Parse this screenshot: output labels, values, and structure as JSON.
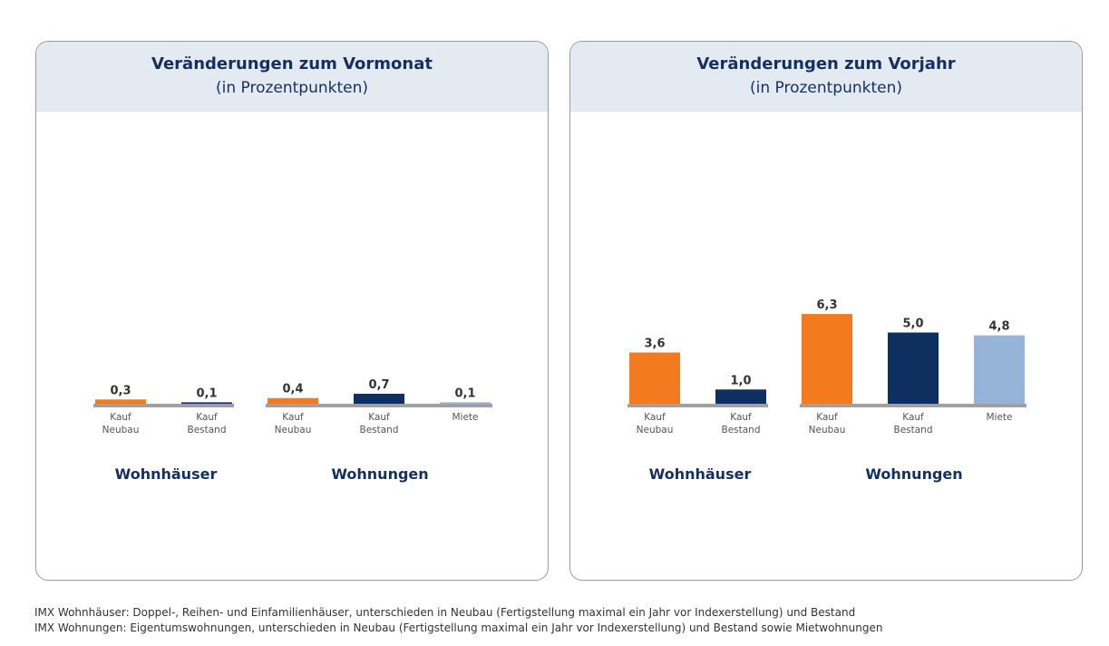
{
  "colors": {
    "kauf_neubau": "#f47a20",
    "kauf_bestand": "#0e3060",
    "miete": "#96b3d8",
    "baseline": "#a0a0a0",
    "text": "#15305f",
    "label_text": "#555555"
  },
  "chart_data": [
    {
      "type": "bar",
      "title": "Veränderungen zum Vormonat",
      "subtitle": "(in Prozentpunkten)",
      "groups": [
        {
          "name": "Wohnhäuser",
          "bars": [
            {
              "label": [
                "Kauf",
                "Neubau"
              ],
              "value": 0.3,
              "value_label": "0,3",
              "color_key": "kauf_neubau"
            },
            {
              "label": [
                "Kauf",
                "Bestand"
              ],
              "value": 0.1,
              "value_label": "0,1",
              "color_key": "kauf_bestand"
            }
          ]
        },
        {
          "name": "Wohnungen",
          "bars": [
            {
              "label": [
                "Kauf",
                "Neubau"
              ],
              "value": 0.4,
              "value_label": "0,4",
              "color_key": "kauf_neubau"
            },
            {
              "label": [
                "Kauf",
                "Bestand"
              ],
              "value": 0.7,
              "value_label": "0,7",
              "color_key": "kauf_bestand"
            },
            {
              "label": [
                "Miete"
              ],
              "value": 0.1,
              "value_label": "0,1",
              "color_key": "miete"
            }
          ]
        }
      ],
      "ylim": [
        0,
        7
      ]
    },
    {
      "type": "bar",
      "title": "Veränderungen zum Vorjahr",
      "subtitle": "(in Prozentpunkten)",
      "groups": [
        {
          "name": "Wohnhäuser",
          "bars": [
            {
              "label": [
                "Kauf",
                "Neubau"
              ],
              "value": 3.6,
              "value_label": "3,6",
              "color_key": "kauf_neubau"
            },
            {
              "label": [
                "Kauf",
                "Bestand"
              ],
              "value": 1.0,
              "value_label": "1,0",
              "color_key": "kauf_bestand"
            }
          ]
        },
        {
          "name": "Wohnungen",
          "bars": [
            {
              "label": [
                "Kauf",
                "Neubau"
              ],
              "value": 6.3,
              "value_label": "6,3",
              "color_key": "kauf_neubau"
            },
            {
              "label": [
                "Kauf",
                "Bestand"
              ],
              "value": 5.0,
              "value_label": "5,0",
              "color_key": "kauf_bestand"
            },
            {
              "label": [
                "Miete"
              ],
              "value": 4.8,
              "value_label": "4,8",
              "color_key": "miete"
            }
          ]
        }
      ],
      "ylim": [
        0,
        7
      ]
    }
  ],
  "footnotes": [
    "IMX Wohnhäuser: Doppel-, Reihen- und Einfamilienhäuser, unterschieden in Neubau (Fertigstellung maximal ein Jahr vor Indexerstellung) und Bestand",
    "IMX Wohnungen: Eigentumswohnungen, unterschieden in Neubau (Fertigstellung maximal ein Jahr vor Indexerstellung) und Bestand sowie Mietwohnungen"
  ]
}
